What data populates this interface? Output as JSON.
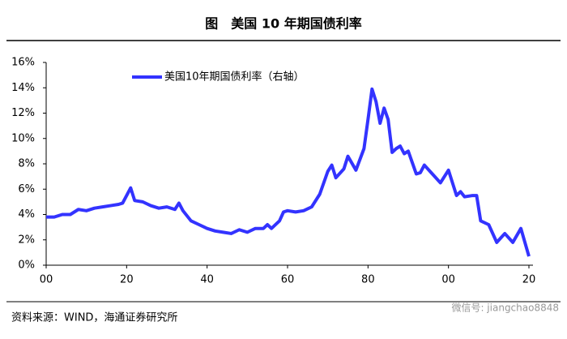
{
  "chart_data": {
    "type": "line",
    "title": "图　美国 10 年期国债利率",
    "source": "资料来源：WIND，海通证券研究所",
    "watermark": "微信号: jiangchao8848",
    "x": [
      1900,
      1902,
      1904,
      1906,
      1908,
      1910,
      1912,
      1914,
      1916,
      1918,
      1919,
      1920,
      1921,
      1922,
      1924,
      1926,
      1928,
      1930,
      1932,
      1933,
      1934,
      1936,
      1938,
      1940,
      1942,
      1944,
      1946,
      1948,
      1950,
      1952,
      1954,
      1955,
      1956,
      1958,
      1959,
      1960,
      1962,
      1964,
      1966,
      1968,
      1970,
      1971,
      1972,
      1974,
      1975,
      1977,
      1979,
      1980,
      1981,
      1982,
      1983,
      1984,
      1985,
      1986,
      1987,
      1988,
      1989,
      1990,
      1991,
      1992,
      1993,
      1994,
      1996,
      1998,
      2000,
      2002,
      2003,
      2004,
      2006,
      2007,
      2008,
      2010,
      2012,
      2014,
      2016,
      2018,
      2020
    ],
    "series": [
      {
        "name": "美国10年期国债利率（右轴）",
        "color": "#3333ff",
        "values": [
          3.8,
          3.8,
          4.0,
          4.0,
          4.4,
          4.3,
          4.5,
          4.6,
          4.7,
          4.8,
          4.9,
          5.5,
          6.1,
          5.1,
          5.0,
          4.7,
          4.5,
          4.6,
          4.4,
          4.9,
          4.3,
          3.5,
          3.2,
          2.9,
          2.7,
          2.6,
          2.5,
          2.8,
          2.6,
          2.9,
          2.9,
          3.2,
          2.9,
          3.5,
          4.2,
          4.3,
          4.2,
          4.3,
          4.6,
          5.6,
          7.4,
          7.9,
          6.9,
          7.6,
          8.6,
          7.5,
          9.2,
          11.5,
          13.9,
          12.9,
          11.2,
          12.4,
          11.5,
          8.9,
          9.2,
          9.4,
          8.8,
          9.0,
          8.1,
          7.2,
          7.3,
          7.9,
          7.2,
          6.5,
          7.5,
          5.5,
          5.8,
          5.4,
          5.5,
          5.5,
          3.5,
          3.2,
          1.8,
          2.5,
          1.8,
          2.9,
          0.7
        ]
      }
    ],
    "xlim": [
      1900,
      2020
    ],
    "xticks": [
      {
        "value": 1900,
        "label": "00"
      },
      {
        "value": 1920,
        "label": "20"
      },
      {
        "value": 1940,
        "label": "40"
      },
      {
        "value": 1960,
        "label": "60"
      },
      {
        "value": 1980,
        "label": "80"
      },
      {
        "value": 2000,
        "label": "00"
      },
      {
        "value": 2020,
        "label": "20"
      }
    ],
    "ylim": [
      0,
      16
    ],
    "yticks": [
      {
        "value": 0,
        "label": "0%"
      },
      {
        "value": 2,
        "label": "2%"
      },
      {
        "value": 4,
        "label": "4%"
      },
      {
        "value": 6,
        "label": "6%"
      },
      {
        "value": 8,
        "label": "8%"
      },
      {
        "value": 10,
        "label": "10%"
      },
      {
        "value": 12,
        "label": "12%"
      },
      {
        "value": 14,
        "label": "14%"
      },
      {
        "value": 16,
        "label": "16%"
      }
    ]
  }
}
